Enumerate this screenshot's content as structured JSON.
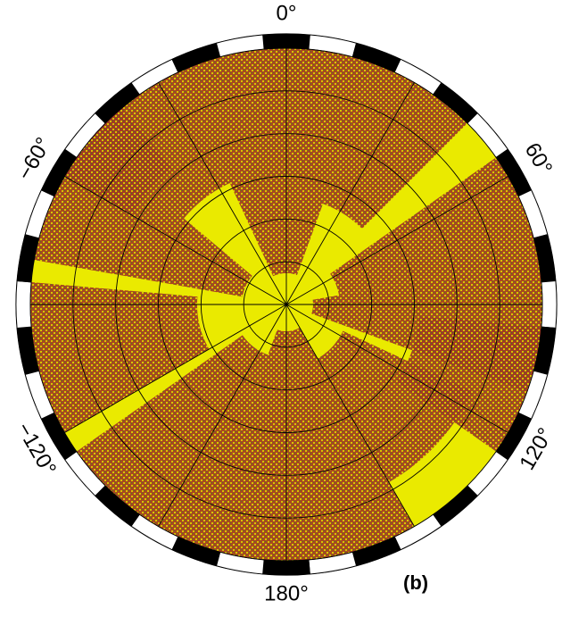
{
  "panel_label": "(b)",
  "chart_data": {
    "type": "heatmap",
    "projection": "polar",
    "title": "",
    "azimuth_tick_labels": [
      "0°",
      "60°",
      "120°",
      "180°",
      "−120°",
      "−60°"
    ],
    "azimuth_tick_values": [
      0,
      60,
      120,
      180,
      -120,
      -60
    ],
    "azimuth_gridline_step_deg": 30,
    "radial_rings": 6,
    "frame": "alternating black/white tick frame",
    "grid": true,
    "colors": {
      "background_field": "#eaea00",
      "dense_texture": "#a23a22",
      "gridline": "#000000",
      "frame_black": "#000000",
      "frame_white": "#ffffff"
    }
  }
}
